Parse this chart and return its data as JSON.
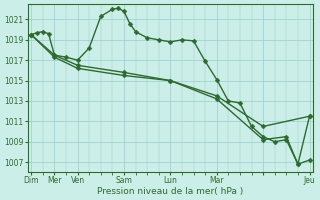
{
  "bg_color": "#cceee8",
  "grid_color": "#99cccc",
  "line_color": "#2d6a2d",
  "ylim": [
    1006,
    1022.5
  ],
  "yticks": [
    1007,
    1009,
    1011,
    1013,
    1015,
    1017,
    1019,
    1021
  ],
  "xlabel": "Pression niveau de la mer( hPa )",
  "xlabel_color": "#2d6a2d",
  "tick_color": "#2d6a2d",
  "day_ticks": [
    0,
    2,
    4,
    8,
    12,
    16,
    20,
    24
  ],
  "day_labels": [
    "Dim",
    "Mer",
    "Ven",
    "Sam",
    "Lun",
    "Mar",
    "",
    "Jeu"
  ],
  "xlim": [
    -0.3,
    24.3
  ],
  "series1_x": [
    0,
    0.5,
    1,
    1.5,
    2,
    3,
    4,
    5,
    6,
    7,
    7.5,
    8,
    8.5,
    9,
    10,
    11,
    12,
    13,
    14,
    15,
    16,
    17,
    18,
    19,
    20,
    21,
    22,
    23,
    24
  ],
  "series1_y": [
    1019.5,
    1019.7,
    1019.8,
    1019.6,
    1017.5,
    1017.3,
    1017.0,
    1018.2,
    1021.3,
    1022.0,
    1022.1,
    1021.8,
    1020.6,
    1019.8,
    1019.2,
    1019.0,
    1018.8,
    1019.0,
    1018.9,
    1016.9,
    1015.1,
    1013.0,
    1012.8,
    1010.5,
    1009.5,
    1009.0,
    1009.2,
    1006.8,
    1011.5
  ],
  "series2_x": [
    0,
    2,
    4,
    8,
    12,
    16,
    20,
    24
  ],
  "series2_y": [
    1019.5,
    1017.5,
    1016.5,
    1015.8,
    1015.0,
    1013.5,
    1010.5,
    1011.5
  ],
  "series3_x": [
    0,
    2,
    4,
    8,
    12,
    16,
    20,
    22,
    23,
    24
  ],
  "series3_y": [
    1019.5,
    1017.3,
    1016.2,
    1015.5,
    1015.0,
    1013.2,
    1009.2,
    1009.5,
    1006.8,
    1007.2
  ]
}
